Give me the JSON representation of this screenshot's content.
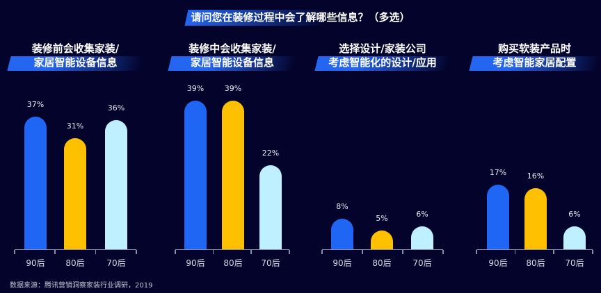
{
  "title": "请问您在装修过程中会了解哪些信息？（多选）",
  "source": "数据来源：腾讯营销洞察家装行业调研，2019",
  "colors": [
    "#1f66f5",
    "#ffc000",
    "#bff0ff"
  ],
  "chart_data": [
    {
      "type": "bar",
      "title_line1": "装修前会收集家装/",
      "title_line2": "家居智能设备信息",
      "categories": [
        "90后",
        "80后",
        "70后"
      ],
      "values": [
        37,
        31,
        36
      ],
      "labels": [
        "37%",
        "31%",
        "36%"
      ]
    },
    {
      "type": "bar",
      "title_line1": "装修中会收集家装/",
      "title_line2": "家居智能设备信息",
      "categories": [
        "90后",
        "80后",
        "70后"
      ],
      "values": [
        39,
        39,
        22
      ],
      "labels": [
        "39%",
        "39%",
        "22%"
      ]
    },
    {
      "type": "bar",
      "title_line1": "选择设计/家装公司",
      "title_line2": "考虑智能化的设计/应用",
      "categories": [
        "90后",
        "80后",
        "70后"
      ],
      "values": [
        8,
        5,
        6
      ],
      "labels": [
        "8%",
        "5%",
        "6%"
      ]
    },
    {
      "type": "bar",
      "title_line1": "购买软装产品时",
      "title_line2": "考虑智能家居配置",
      "categories": [
        "90后",
        "80后",
        "70后"
      ],
      "values": [
        17,
        16,
        6
      ],
      "labels": [
        "17%",
        "16%",
        "6%"
      ]
    }
  ]
}
